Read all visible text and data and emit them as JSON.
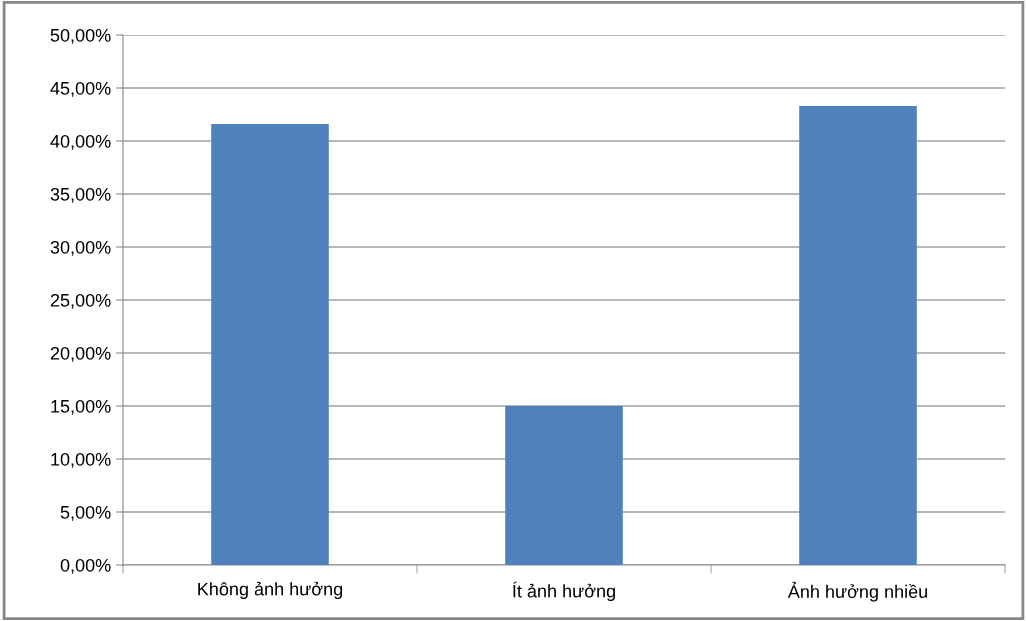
{
  "chart_data": {
    "type": "bar",
    "categories": [
      "Không ảnh hưởng",
      "Ít ảnh hưởng",
      "Ảnh hưởng nhiều"
    ],
    "values": [
      41.6,
      15.0,
      43.3
    ],
    "color": "#4f81bd",
    "ylim": [
      0,
      50
    ],
    "yticks": [
      {
        "value": 0,
        "label": "0,00%"
      },
      {
        "value": 5,
        "label": "5,00%"
      },
      {
        "value": 10,
        "label": "10,00%"
      },
      {
        "value": 15,
        "label": "15,00%"
      },
      {
        "value": 20,
        "label": "20,00%"
      },
      {
        "value": 25,
        "label": "25,00%"
      },
      {
        "value": 30,
        "label": "30,00%"
      },
      {
        "value": 35,
        "label": "35,00%"
      },
      {
        "value": 40,
        "label": "40,00%"
      },
      {
        "value": 45,
        "label": "45,00%"
      },
      {
        "value": 50,
        "label": "50,00%"
      }
    ],
    "grid": "y",
    "legend": false
  }
}
